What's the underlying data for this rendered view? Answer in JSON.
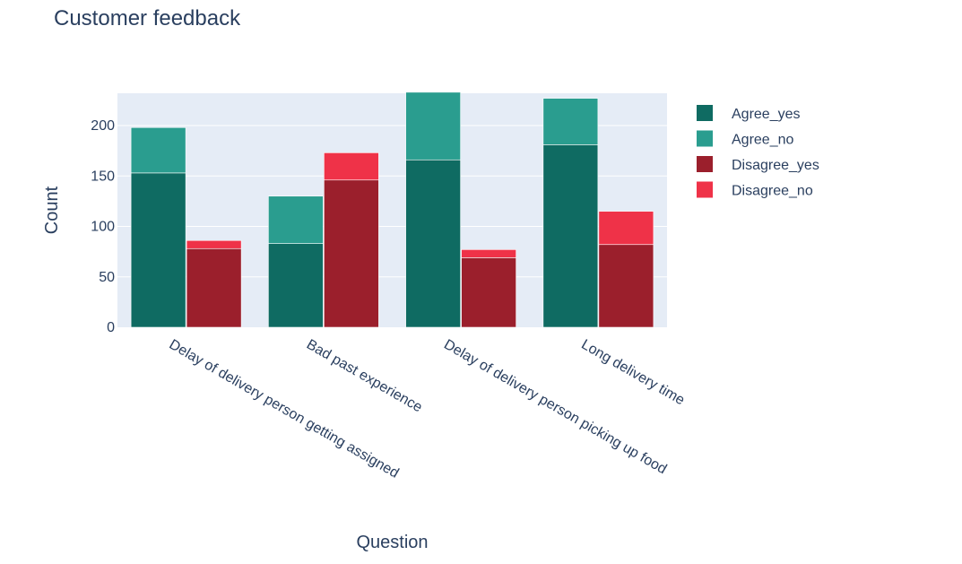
{
  "chart_data": {
    "type": "bar",
    "title": "Customer feedback",
    "xlabel": "Question",
    "ylabel": "Count",
    "categories": [
      "Delay of delivery person getting assigned",
      "Bad past experience",
      "Delay of delivery person picking up food",
      "Long delivery time"
    ],
    "stacks": [
      {
        "group": "Agree",
        "series": [
          {
            "name": "Agree_yes",
            "color": "#0f6b62",
            "values": [
              153,
              83,
              166,
              181
            ]
          },
          {
            "name": "Agree_no",
            "color": "#2a9d8f",
            "values": [
              45,
              47,
              67,
              46
            ]
          }
        ]
      },
      {
        "group": "Disagree",
        "series": [
          {
            "name": "Disagree_yes",
            "color": "#9b1f2c",
            "values": [
              78,
              146,
              69,
              82
            ]
          },
          {
            "name": "Disagree_no",
            "color": "#ef3248",
            "values": [
              8,
              27,
              8,
              33
            ]
          }
        ]
      }
    ],
    "ylim": [
      0,
      232
    ],
    "yticks": [
      0,
      50,
      100,
      150,
      200
    ],
    "grid": true,
    "legend_position": "right",
    "background": "#e5ecf6"
  }
}
